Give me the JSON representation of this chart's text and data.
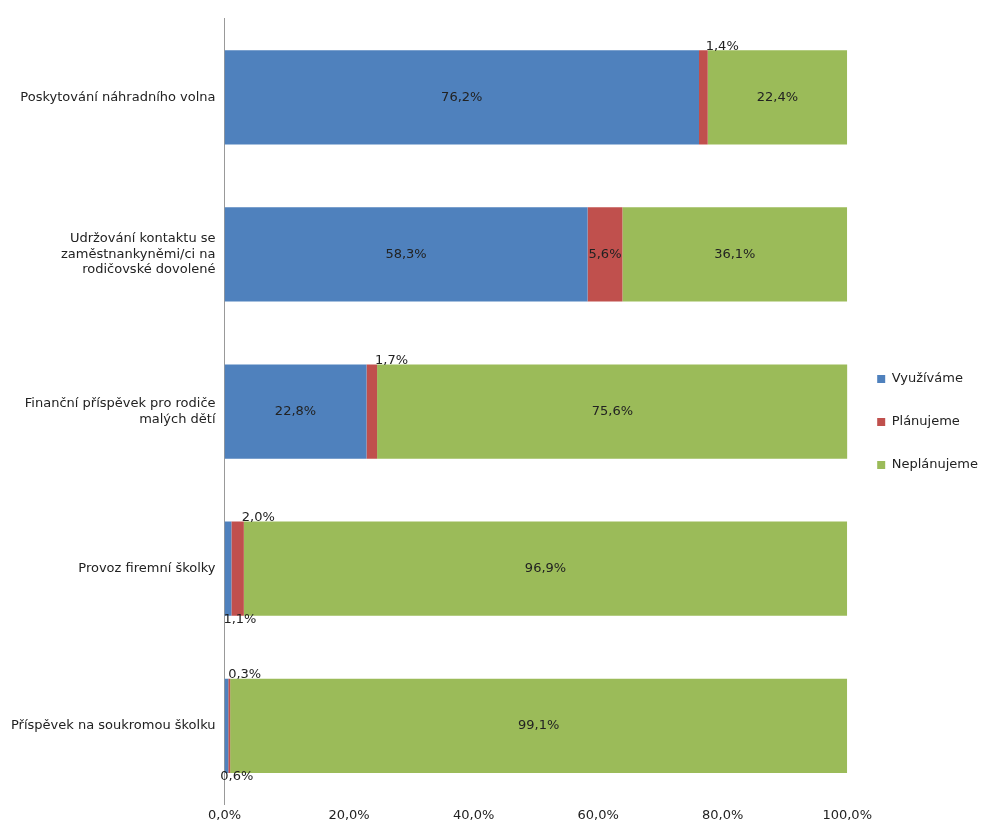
{
  "chart_data": {
    "type": "bar",
    "orientation": "horizontal",
    "stacked": true,
    "categories": [
      "Poskytování náhradního volna",
      "Udržování kontaktu se zaměstnankyněmi/ci na rodičovské dovolené",
      "Finanční příspěvek pro rodiče malých dětí",
      "Provoz firemní školky",
      "Příspěvek na soukromou školku"
    ],
    "series": [
      {
        "name": "Využíváme",
        "color": "#4f81bd",
        "values": [
          76.2,
          58.3,
          22.8,
          1.1,
          0.6
        ],
        "value_labels": [
          "76,2%",
          "58,3%",
          "22,8%",
          "1,1%",
          "0,6%"
        ]
      },
      {
        "name": "Plánujeme",
        "color": "#c0504d",
        "values": [
          1.4,
          5.6,
          1.7,
          2.0,
          0.3
        ],
        "value_labels": [
          "1,4%",
          "5,6%",
          "1,7%",
          "2,0%",
          "0,3%"
        ]
      },
      {
        "name": "Neplánujeme",
        "color": "#9bbb59",
        "values": [
          22.4,
          36.1,
          75.6,
          96.9,
          99.1
        ],
        "value_labels": [
          "22,4%",
          "36,1%",
          "75,6%",
          "96,9%",
          "99,1%"
        ]
      }
    ],
    "xlim": [
      0,
      100
    ],
    "xticks": [
      {
        "value": 0,
        "label": "0,0%"
      },
      {
        "value": 20,
        "label": "20,0%"
      },
      {
        "value": 40,
        "label": "40,0%"
      },
      {
        "value": 60,
        "label": "60,0%"
      },
      {
        "value": 80,
        "label": "80,0%"
      },
      {
        "value": 100,
        "label": "100,0%"
      }
    ],
    "grid": false,
    "legend": "right"
  }
}
